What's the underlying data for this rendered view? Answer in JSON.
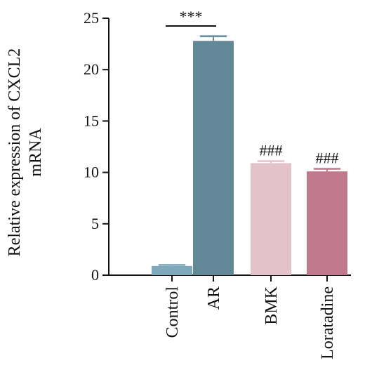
{
  "chart_data": {
    "type": "bar",
    "title": "",
    "xlabel": "",
    "ylabel_lines": [
      "Relative expression of CXCL2",
      "mRNA"
    ],
    "ylim": [
      0,
      25
    ],
    "yticks": [
      0,
      5,
      10,
      15,
      20,
      25
    ],
    "grid": false,
    "categories": [
      "Control",
      "AR",
      "BMK",
      "Loratadine"
    ],
    "values": [
      0.9,
      22.8,
      10.9,
      10.1
    ],
    "errors": [
      0.1,
      0.45,
      0.2,
      0.25
    ],
    "colors": [
      "#7fa8bb",
      "#628898",
      "#e3c3c9",
      "#c0788d"
    ],
    "annotations": [
      {
        "label": "***",
        "target": "AR",
        "bracket_from": "Control",
        "bracket_to": "AR"
      },
      {
        "label": "###",
        "target": "BMK"
      },
      {
        "label": "###",
        "target": "Loratadine"
      }
    ]
  }
}
